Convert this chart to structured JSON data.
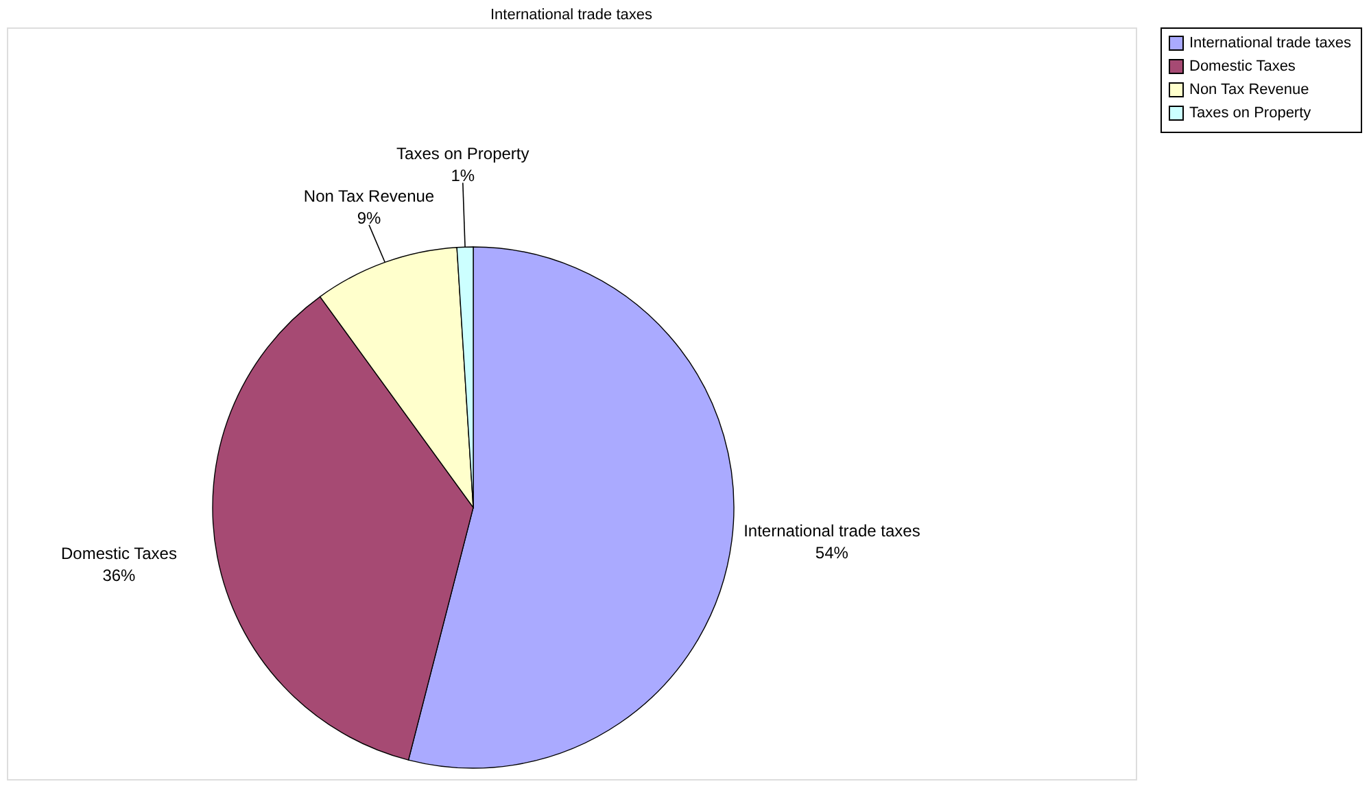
{
  "chart_data": {
    "type": "pie",
    "title": "International trade taxes",
    "categories": [
      "International trade taxes",
      "Domestic Taxes",
      "Non Tax Revenue",
      "Taxes on Property"
    ],
    "values": [
      54,
      36,
      9,
      1
    ],
    "value_labels": [
      "54%",
      "36%",
      "9%",
      "1%"
    ],
    "colors": [
      "#aaaaff",
      "#a64a73",
      "#ffffcc",
      "#ccffff"
    ],
    "legend": "right"
  }
}
